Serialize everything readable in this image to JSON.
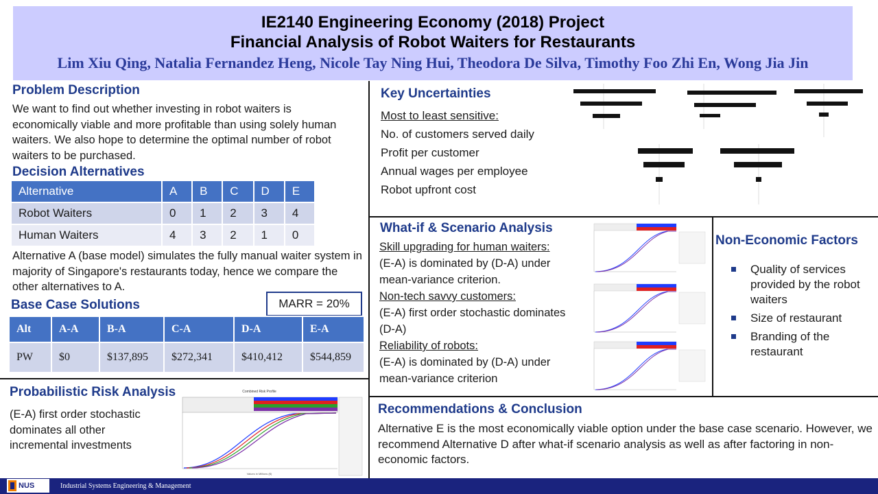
{
  "header": {
    "title_line1": "IE2140 Engineering Economy (2018) Project",
    "title_line2": "Financial Analysis of Robot Waiters for Restaurants",
    "authors": "Lim Xiu Qing, Natalia Fernandez Heng, Nicole Tay Ning Hui, Theodora De Silva, Timothy Foo Zhi En, Wong Jia Jin"
  },
  "problem": {
    "title": "Problem Description",
    "text": "We want to find out whether investing in robot waiters is economically viable and more profitable than using solely human waiters. We also hope to determine the optimal number of robot waiters to be purchased."
  },
  "decision": {
    "title": "Decision Alternatives",
    "headers": [
      "Alternative",
      "A",
      "B",
      "C",
      "D",
      "E"
    ],
    "rows": [
      [
        "Robot Waiters",
        "0",
        "1",
        "2",
        "3",
        "4"
      ],
      [
        "Human Waiters",
        "4",
        "3",
        "2",
        "1",
        "0"
      ]
    ],
    "note": "Alternative A (base model) simulates the fully manual waiter system in majority of Singapore's restaurants today, hence we compare the other alternatives to A."
  },
  "base_case": {
    "title": "Base Case Solutions",
    "marr": "MARR = 20%",
    "headers": [
      "Alt",
      "A-A",
      "B-A",
      "C-A",
      "D-A",
      "E-A"
    ],
    "row": [
      "PW",
      "$0",
      "$137,895",
      "$272,341",
      "$410,412",
      "$544,859"
    ]
  },
  "risk": {
    "title": "Probabilistic Risk Analysis",
    "text": "(E-A) first order stochastic dominates all other incremental investments",
    "chart_title": "Combined Risk Profile",
    "chart_xlabel": "Values in Millions ($)",
    "series_colors": [
      "#1f3cff",
      "#e02020",
      "#2ca02c",
      "#7b2fa8"
    ]
  },
  "uncertainties": {
    "title": "Key Uncertainties",
    "subtitle": "Most to least sensitive:",
    "items": [
      "No. of customers served daily",
      "Profit per customer",
      "Annual wages per employee",
      "Robot upfront cost"
    ]
  },
  "whatif": {
    "title": "What-if & Scenario Analysis",
    "items": [
      {
        "heading": "Skill upgrading for human waiters:",
        "text": "(E-A) is dominated by (D-A) under mean-variance criterion."
      },
      {
        "heading": "Non-tech savvy customers:",
        "text": "(E-A) first order stochastic dominates (D-A)"
      },
      {
        "heading": "Reliability of robots:",
        "text": "(E-A) is dominated by (D-A) under mean-variance criterion"
      }
    ]
  },
  "non_economic": {
    "title": "Non-Economic Factors",
    "items": [
      "Quality of services provided by the robot waiters",
      "Size of restaurant",
      "Branding of the restaurant"
    ]
  },
  "recommendations": {
    "title": "Recommendations & Conclusion",
    "text": "Alternative E is the most economically viable option under the base case scenario. However, we recommend Alternative D after what-if scenario analysis as well as after factoring in non-economic factors."
  },
  "footer": {
    "logo": "NUS",
    "text": "Industrial Systems Engineering & Management"
  }
}
